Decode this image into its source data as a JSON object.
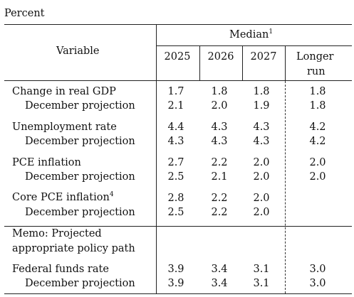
{
  "unit_label": "Percent",
  "header": {
    "variable": "Variable",
    "median": "Median",
    "median_note": "1",
    "years": [
      "2025",
      "2026",
      "2027"
    ],
    "longer_run_line1": "Longer",
    "longer_run_line2": "run"
  },
  "rows": [
    {
      "label": "Change in real GDP",
      "values": [
        "1.7",
        "1.8",
        "1.8",
        "1.8"
      ]
    },
    {
      "label": "December projection",
      "values": [
        "2.1",
        "2.0",
        "1.9",
        "1.8"
      ]
    },
    {
      "label": "Unemployment rate",
      "values": [
        "4.4",
        "4.3",
        "4.3",
        "4.2"
      ]
    },
    {
      "label": "December projection",
      "values": [
        "4.3",
        "4.3",
        "4.3",
        "4.2"
      ]
    },
    {
      "label": "PCE inflation",
      "values": [
        "2.7",
        "2.2",
        "2.0",
        "2.0"
      ]
    },
    {
      "label": "December projection",
      "values": [
        "2.5",
        "2.1",
        "2.0",
        "2.0"
      ]
    },
    {
      "label": "Core PCE inflation",
      "note": "4",
      "values": [
        "2.8",
        "2.2",
        "2.0",
        ""
      ]
    },
    {
      "label": "December projection",
      "values": [
        "2.5",
        "2.2",
        "2.0",
        ""
      ]
    }
  ],
  "memo": {
    "line1": "Memo: Projected",
    "line2": "appropriate policy path"
  },
  "policy_rows": [
    {
      "label": "Federal funds rate",
      "values": [
        "3.9",
        "3.4",
        "3.1",
        "3.0"
      ]
    },
    {
      "label": "December projection",
      "values": [
        "3.9",
        "3.4",
        "3.1",
        "3.0"
      ]
    }
  ]
}
